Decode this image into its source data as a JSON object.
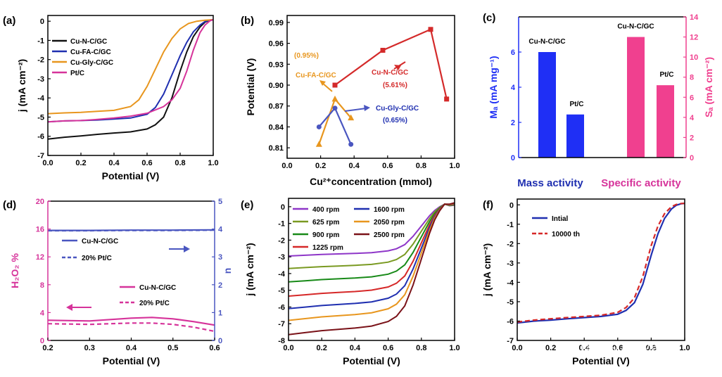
{
  "figure": {
    "watermark": "知乎 @小火箭"
  },
  "chart_data": [
    {
      "panel": "(a)",
      "type": "line",
      "xlabel": "Potential (V)",
      "ylabel": "j (mA cm⁻²)",
      "xlim": [
        0.0,
        1.0
      ],
      "ylim": [
        -7,
        0.3
      ],
      "xticks": [
        "0.0",
        "0.2",
        "0.4",
        "0.6",
        "0.8",
        "1.0"
      ],
      "yticks": [
        "-7",
        "-6",
        "-5",
        "-4",
        "-3",
        "-2",
        "-1",
        "0"
      ],
      "series": [
        {
          "name": "Cu-N-C/GC",
          "color": "#111111",
          "dash": "",
          "x": [
            0,
            0.1,
            0.2,
            0.3,
            0.4,
            0.5,
            0.6,
            0.65,
            0.7,
            0.75,
            0.8,
            0.84,
            0.88,
            0.92,
            0.95,
            0.98,
            1.0
          ],
          "y": [
            -6.15,
            -6.05,
            -5.98,
            -5.9,
            -5.83,
            -5.77,
            -5.62,
            -5.4,
            -5.0,
            -4.0,
            -2.6,
            -1.6,
            -0.8,
            -0.3,
            -0.05,
            0.05,
            0.08
          ]
        },
        {
          "name": "Cu-FA-C/GC",
          "color": "#1f2fb0",
          "dash": "",
          "x": [
            0,
            0.1,
            0.2,
            0.3,
            0.4,
            0.5,
            0.6,
            0.65,
            0.7,
            0.75,
            0.8,
            0.84,
            0.88,
            0.92,
            0.95,
            0.98,
            1.0
          ],
          "y": [
            -5.25,
            -5.2,
            -5.18,
            -5.15,
            -5.1,
            -5.05,
            -4.85,
            -4.5,
            -3.8,
            -2.8,
            -1.8,
            -1.1,
            -0.55,
            -0.2,
            -0.02,
            0.06,
            0.08
          ]
        },
        {
          "name": "Cu-Gly-C/GC",
          "color": "#e8961e",
          "dash": "",
          "x": [
            0,
            0.1,
            0.2,
            0.3,
            0.4,
            0.5,
            0.55,
            0.6,
            0.65,
            0.7,
            0.75,
            0.8,
            0.85,
            0.9,
            0.95,
            1.0
          ],
          "y": [
            -4.82,
            -4.78,
            -4.75,
            -4.7,
            -4.65,
            -4.45,
            -4.1,
            -3.4,
            -2.5,
            -1.6,
            -0.9,
            -0.4,
            -0.12,
            0.0,
            0.05,
            0.08
          ]
        },
        {
          "name": "Pt/C",
          "color": "#d6339a",
          "dash": "",
          "x": [
            0,
            0.1,
            0.2,
            0.3,
            0.4,
            0.5,
            0.6,
            0.7,
            0.75,
            0.8,
            0.84,
            0.88,
            0.92,
            0.95,
            0.98,
            1.0
          ],
          "y": [
            -5.25,
            -5.2,
            -5.18,
            -5.12,
            -5.05,
            -4.95,
            -4.8,
            -4.45,
            -4.1,
            -3.5,
            -2.6,
            -1.5,
            -0.6,
            -0.2,
            0.02,
            0.08
          ]
        }
      ]
    },
    {
      "panel": "(b)",
      "type": "scatter",
      "xlabel": "Cu²⁺concentration (mmol)",
      "ylabel": "Potential (V)",
      "xlim": [
        0.0,
        1.05
      ],
      "ylim": [
        0.795,
        1.0
      ],
      "xticks": [
        "0.0",
        "0.2",
        "0.4",
        "0.6",
        "0.8",
        "1.0"
      ],
      "yticks": [
        "0.81",
        "0.84",
        "0.87",
        "0.90",
        "0.93",
        "0.96",
        "0.99"
      ],
      "series": [
        {
          "name": "Cu-N-C/GC",
          "color": "#d42a2a",
          "marker": "square",
          "x": [
            0.3,
            0.6,
            0.9,
            1.0
          ],
          "y": [
            0.9,
            0.95,
            0.98,
            0.88
          ]
        },
        {
          "name": "Cu-FA-C/GC",
          "color": "#e8961e",
          "marker": "triangle",
          "x": [
            0.2,
            0.3,
            0.4
          ],
          "y": [
            0.815,
            0.88,
            0.853
          ]
        },
        {
          "name": "Cu-Gly-C/GC",
          "color": "#4a56c0",
          "marker": "circle",
          "x": [
            0.2,
            0.3,
            0.4
          ],
          "y": [
            0.84,
            0.867,
            0.815
          ]
        }
      ],
      "annotations": [
        {
          "text": "(0.95%)",
          "color": "#e8961e"
        },
        {
          "text": "Cu-FA-C/GC",
          "color": "#e8961e"
        },
        {
          "text": "Cu-N-C/GC",
          "color": "#d42a2a"
        },
        {
          "text": "(5.61%)",
          "color": "#d42a2a"
        },
        {
          "text": "Cu-Gly-C/GC",
          "color": "#1f2fb0"
        },
        {
          "text": "(0.65%)",
          "color": "#1f2fb0"
        }
      ]
    },
    {
      "panel": "(c)",
      "type": "bar",
      "ylabel_left": "Mₐ (mA mg⁻¹)",
      "ylabel_right": "Sₐ (mA cm⁻²)",
      "ylim_left": [
        0,
        8
      ],
      "ylim_right": [
        0,
        14
      ],
      "yticks_left": [
        "0",
        "2",
        "4",
        "6"
      ],
      "yticks_right": [
        "0",
        "2",
        "4",
        "6",
        "8",
        "10",
        "12",
        "14"
      ],
      "groups": [
        {
          "name": "Mass activity",
          "color": "#1f2ff5",
          "axis": "left",
          "categories": [
            "Cu-N-C/GC",
            "Pt/C"
          ],
          "values": [
            6.0,
            2.45
          ]
        },
        {
          "name": "Specific activity",
          "color": "#f0408f",
          "axis": "right",
          "categories": [
            "Cu-N-C/GC",
            "Pt/C"
          ],
          "values": [
            12.0,
            7.2
          ]
        }
      ]
    },
    {
      "panel": "(d)",
      "type": "line",
      "xlabel": "Potential (V)",
      "ylabel_left": "H₂O₂ %",
      "ylabel_right": "n",
      "xlim": [
        0.2,
        0.6
      ],
      "ylim_left": [
        0,
        20
      ],
      "ylim_right": [
        0,
        5
      ],
      "xticks": [
        "0.2",
        "0.3",
        "0.4",
        "0.5",
        "0.6"
      ],
      "yticks_left": [
        "0",
        "4",
        "8",
        "12",
        "16",
        "20"
      ],
      "yticks_right": [
        "0",
        "1",
        "2",
        "3",
        "4",
        "5"
      ],
      "series": [
        {
          "name": "Cu-N-C/GC",
          "axis": "right",
          "color": "#4a56c0",
          "dash": "",
          "x": [
            0.2,
            0.3,
            0.4,
            0.5,
            0.6
          ],
          "y": [
            3.95,
            3.95,
            3.96,
            3.96,
            3.97
          ]
        },
        {
          "name": "20% Pt/C",
          "axis": "right",
          "color": "#4a56c0",
          "dash": "6,4",
          "x": [
            0.2,
            0.3,
            0.4,
            0.5,
            0.6
          ],
          "y": [
            3.94,
            3.94,
            3.95,
            3.95,
            3.96
          ]
        },
        {
          "name": "Cu-N-C/GC",
          "axis": "left",
          "color": "#d6339a",
          "dash": "",
          "x": [
            0.2,
            0.25,
            0.3,
            0.35,
            0.4,
            0.45,
            0.5,
            0.55,
            0.6
          ],
          "y": [
            2.9,
            2.85,
            2.8,
            3.0,
            3.2,
            3.3,
            3.1,
            2.7,
            2.2
          ]
        },
        {
          "name": "20% Pt/C",
          "axis": "left",
          "color": "#d6339a",
          "dash": "6,4",
          "x": [
            0.2,
            0.25,
            0.3,
            0.35,
            0.4,
            0.45,
            0.5,
            0.55,
            0.6
          ],
          "y": [
            2.4,
            2.35,
            2.3,
            2.4,
            2.5,
            2.5,
            2.3,
            1.9,
            1.3
          ]
        }
      ]
    },
    {
      "panel": "(e)",
      "type": "line",
      "xlabel": "Potential (V)",
      "ylabel": "j (mA cm⁻²)",
      "xlim": [
        0.0,
        1.0
      ],
      "ylim": [
        -8,
        0.5
      ],
      "xticks": [
        "0.0",
        "0.2",
        "0.4",
        "0.6",
        "0.8",
        "1.0"
      ],
      "yticks": [
        "-8",
        "-7",
        "-6",
        "-5",
        "-4",
        "-3",
        "-2",
        "-1",
        "0"
      ],
      "series": [
        {
          "name": "400 rpm",
          "color": "#8e36c8",
          "limit": -2.95
        },
        {
          "name": "625 rpm",
          "color": "#7a9a22",
          "limit": -3.7
        },
        {
          "name": "900 rpm",
          "color": "#188a18",
          "limit": -4.5
        },
        {
          "name": "1225 rpm",
          "color": "#d62828",
          "limit": -5.35
        },
        {
          "name": "1600 rpm",
          "color": "#1f2fb0",
          "limit": -6.1
        },
        {
          "name": "2050 rpm",
          "color": "#e8961e",
          "limit": -6.8
        },
        {
          "name": "2500 rpm",
          "color": "#7a1218",
          "limit": -7.65
        }
      ]
    },
    {
      "panel": "(f)",
      "type": "line",
      "xlabel": "Potential (V)",
      "ylabel": "j (mA cm⁻²)",
      "xlim": [
        0.0,
        1.0
      ],
      "ylim": [
        -7,
        0.3
      ],
      "xticks": [
        "0.0",
        "0.2",
        "0.4",
        "0.6",
        "0.8",
        "1.0"
      ],
      "yticks": [
        "-7",
        "-6",
        "-5",
        "-4",
        "-3",
        "-2",
        "-1",
        "0"
      ],
      "series": [
        {
          "name": "Intial",
          "color": "#1f2fb0",
          "dash": "",
          "x": [
            0,
            0.1,
            0.2,
            0.3,
            0.4,
            0.5,
            0.6,
            0.65,
            0.7,
            0.75,
            0.8,
            0.84,
            0.88,
            0.92,
            0.95,
            0.98,
            1.0
          ],
          "y": [
            -6.1,
            -6.0,
            -5.95,
            -5.88,
            -5.82,
            -5.76,
            -5.65,
            -5.45,
            -5.05,
            -4.1,
            -2.6,
            -1.5,
            -0.7,
            -0.22,
            -0.02,
            0.06,
            0.08
          ]
        },
        {
          "name": "10000 th",
          "color": "#d62828",
          "dash": "7,4",
          "x": [
            0,
            0.1,
            0.2,
            0.3,
            0.4,
            0.5,
            0.6,
            0.65,
            0.7,
            0.75,
            0.8,
            0.84,
            0.88,
            0.92,
            0.95,
            0.98,
            1.0
          ],
          "y": [
            -6.05,
            -5.95,
            -5.88,
            -5.82,
            -5.76,
            -5.7,
            -5.55,
            -5.3,
            -4.8,
            -3.7,
            -2.1,
            -1.1,
            -0.45,
            -0.1,
            0.02,
            0.07,
            0.08
          ]
        }
      ]
    }
  ]
}
